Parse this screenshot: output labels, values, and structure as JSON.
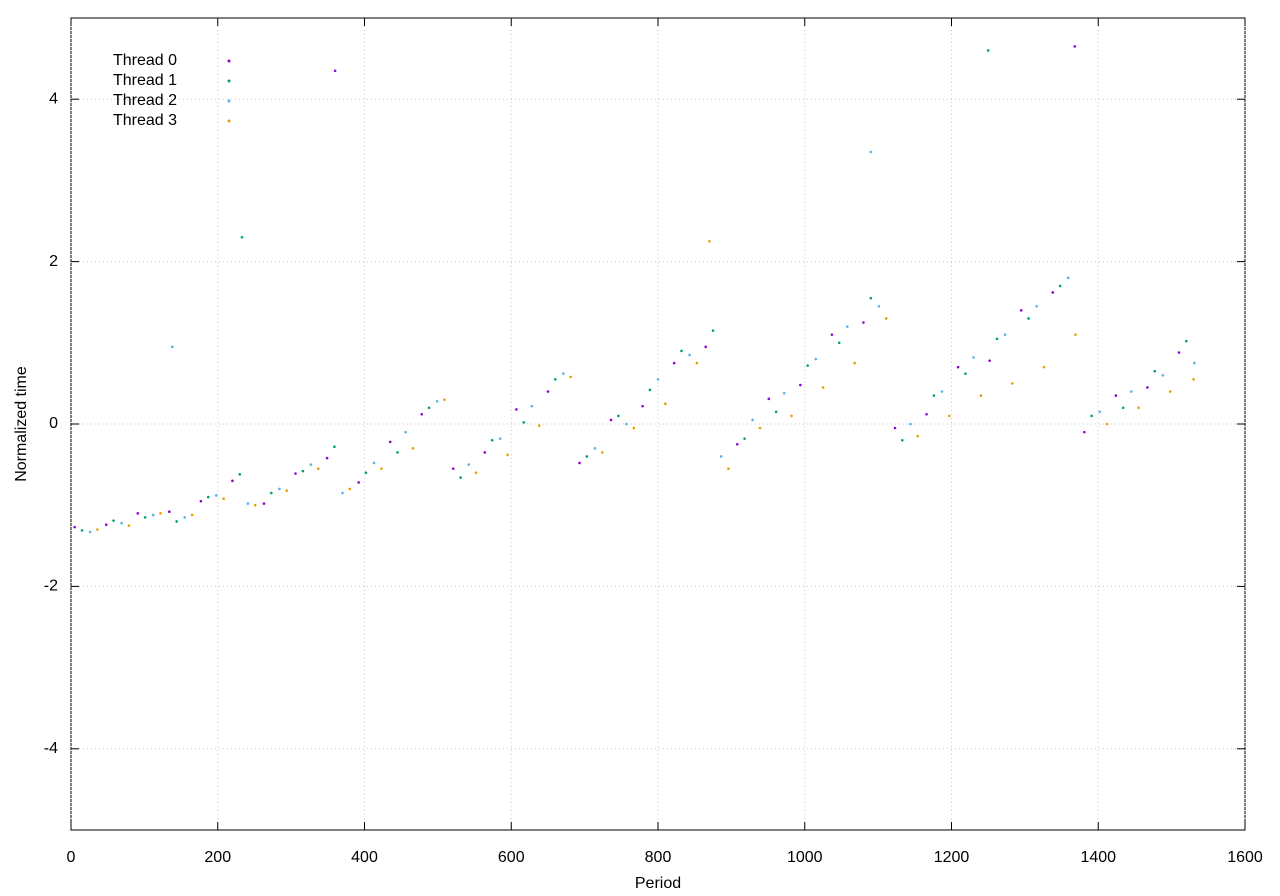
{
  "chart_data": {
    "type": "scatter",
    "xlabel": "Period",
    "ylabel": "Normalized time",
    "xlim": [
      0,
      1600
    ],
    "xticks": [
      0,
      200,
      400,
      600,
      800,
      1000,
      1200,
      1400,
      1600
    ],
    "ylim": [
      -5,
      5
    ],
    "yticks": [
      -4,
      -2,
      0,
      2,
      4
    ],
    "grid": true,
    "legend": "top-left",
    "series": [
      {
        "name": "Thread 0",
        "color": "#9400d3",
        "x": [
          5,
          48,
          91,
          134,
          177,
          220,
          263,
          306,
          349,
          392,
          435,
          478,
          521,
          564,
          607,
          650,
          693,
          736,
          779,
          822,
          865,
          908,
          951,
          994,
          1037,
          1080,
          1123,
          1166,
          1209,
          1252,
          1295,
          1338,
          1381,
          1424,
          1467,
          1510,
          1368,
          360
        ],
        "values": [
          -1.27,
          -1.24,
          -1.1,
          -1.08,
          -0.95,
          -0.7,
          -0.98,
          -0.61,
          -0.42,
          -0.72,
          -0.22,
          0.12,
          -0.55,
          -0.35,
          0.18,
          0.4,
          -0.48,
          0.05,
          0.22,
          0.75,
          0.95,
          -0.25,
          0.31,
          0.48,
          1.1,
          1.25,
          -0.05,
          0.12,
          0.7,
          0.78,
          1.4,
          1.62,
          -0.1,
          0.35,
          0.45,
          0.88,
          4.65,
          4.35
        ]
      },
      {
        "name": "Thread 1",
        "color": "#009e73",
        "x": [
          15,
          58,
          101,
          144,
          187,
          230,
          273,
          316,
          359,
          402,
          445,
          488,
          531,
          574,
          617,
          660,
          703,
          746,
          789,
          832,
          875,
          918,
          961,
          1004,
          1047,
          1090,
          1133,
          1176,
          1219,
          1262,
          1305,
          1348,
          1391,
          1434,
          1477,
          1520,
          1250,
          233
        ],
        "values": [
          -1.31,
          -1.19,
          -1.15,
          -1.2,
          -0.9,
          -0.62,
          -0.85,
          -0.58,
          -0.28,
          -0.6,
          -0.35,
          0.2,
          -0.66,
          -0.2,
          0.02,
          0.55,
          -0.4,
          0.1,
          0.42,
          0.9,
          1.15,
          -0.18,
          0.15,
          0.72,
          1.0,
          1.55,
          -0.2,
          0.35,
          0.62,
          1.05,
          1.3,
          1.7,
          0.1,
          0.2,
          0.65,
          1.02,
          4.6,
          2.3
        ]
      },
      {
        "name": "Thread 2",
        "color": "#56b4e9",
        "x": [
          26,
          69,
          112,
          155,
          198,
          241,
          284,
          327,
          370,
          413,
          456,
          499,
          542,
          585,
          628,
          671,
          714,
          757,
          800,
          843,
          886,
          929,
          972,
          1015,
          1058,
          1101,
          1144,
          1187,
          1230,
          1273,
          1316,
          1359,
          1402,
          1445,
          1488,
          1531,
          138,
          1090
        ],
        "values": [
          -1.33,
          -1.22,
          -1.12,
          -1.15,
          -0.88,
          -0.98,
          -0.8,
          -0.5,
          -0.85,
          -0.48,
          -0.1,
          0.28,
          -0.5,
          -0.18,
          0.22,
          0.62,
          -0.3,
          0.0,
          0.55,
          0.85,
          -0.4,
          0.05,
          0.38,
          0.8,
          1.2,
          1.45,
          0.0,
          0.4,
          0.82,
          1.1,
          1.45,
          1.8,
          0.15,
          0.4,
          0.6,
          0.75,
          0.95,
          3.35
        ]
      },
      {
        "name": "Thread 3",
        "color": "#e69f00",
        "x": [
          36,
          79,
          122,
          165,
          208,
          251,
          294,
          337,
          380,
          423,
          466,
          509,
          552,
          595,
          638,
          681,
          724,
          767,
          810,
          853,
          896,
          939,
          982,
          1025,
          1068,
          1111,
          1154,
          1197,
          1240,
          1283,
          1326,
          1369,
          1412,
          1455,
          1498,
          1530,
          870
        ],
        "values": [
          -1.3,
          -1.25,
          -1.1,
          -1.12,
          -0.92,
          -1.0,
          -0.82,
          -0.55,
          -0.8,
          -0.55,
          -0.3,
          0.3,
          -0.6,
          -0.38,
          -0.02,
          0.58,
          -0.35,
          -0.05,
          0.25,
          0.75,
          -0.55,
          -0.05,
          0.1,
          0.45,
          0.75,
          1.3,
          -0.15,
          0.1,
          0.35,
          0.5,
          0.7,
          1.1,
          0.0,
          0.2,
          0.4,
          0.55,
          2.25
        ]
      }
    ]
  }
}
